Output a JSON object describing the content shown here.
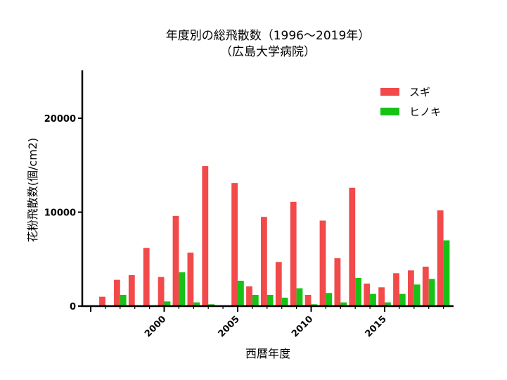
{
  "chart_data": {
    "type": "bar",
    "title": "年度別の総飛散数（1996〜2019年）",
    "subtitle": "（広島大学病院）",
    "xlabel": "西暦年度",
    "ylabel": "花粉飛散数(個/cm2)",
    "x": [
      1996,
      1997,
      1998,
      1999,
      2000,
      2001,
      2002,
      2003,
      2004,
      2005,
      2006,
      2007,
      2008,
      2009,
      2010,
      2011,
      2012,
      2013,
      2014,
      2015,
      2016,
      2017,
      2018,
      2019
    ],
    "xticks": [
      2000,
      2005,
      2010,
      2015
    ],
    "xlim": [
      1995,
      2019.5
    ],
    "yticks": [
      0,
      10000,
      20000
    ],
    "ylim": [
      0,
      25000
    ],
    "legend_position": "top-right",
    "series": [
      {
        "name": "スギ",
        "color": "#f24a4a",
        "values": [
          1000,
          2800,
          3300,
          6200,
          3100,
          9600,
          5700,
          14900,
          0,
          13100,
          2100,
          9500,
          4700,
          11100,
          1200,
          9100,
          5100,
          12600,
          2400,
          2000,
          3500,
          3800,
          4200,
          10200
        ]
      },
      {
        "name": "ヒノキ",
        "color": "#17c217",
        "values": [
          0,
          1200,
          0,
          0,
          500,
          3600,
          400,
          200,
          0,
          2700,
          1200,
          1200,
          900,
          1900,
          200,
          1400,
          400,
          3000,
          1300,
          400,
          1300,
          2300,
          2900,
          7000
        ]
      }
    ]
  }
}
